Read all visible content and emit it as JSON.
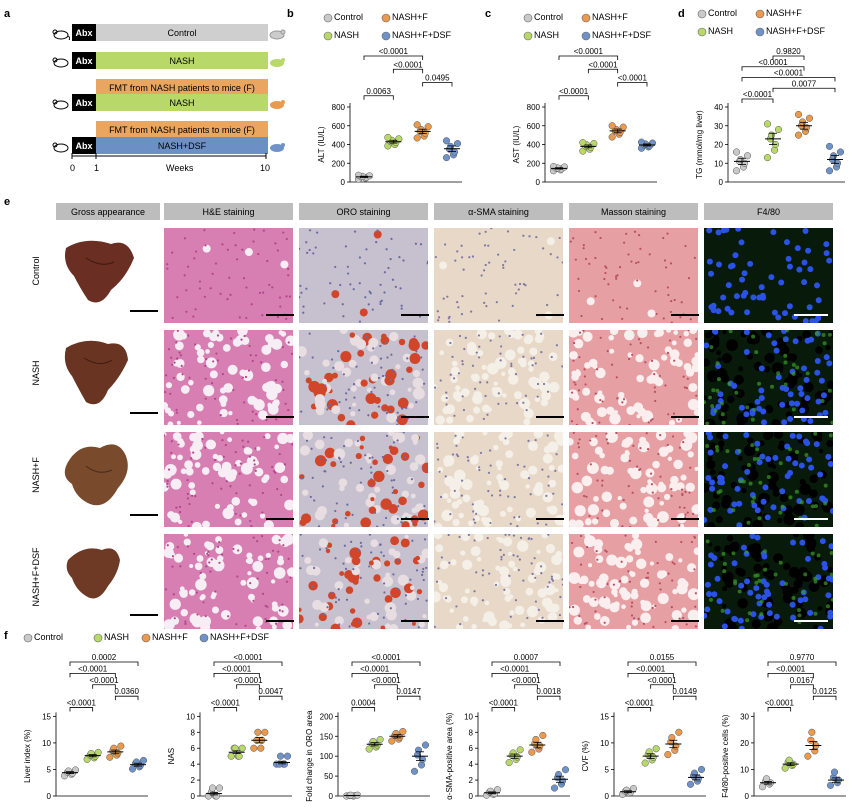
{
  "panels": {
    "a": "a",
    "b": "b",
    "c": "c",
    "d": "d",
    "e": "e",
    "f": "f"
  },
  "colors": {
    "control": "#c9c9c9",
    "nash": "#b9d86a",
    "nashf": "#e99a4f",
    "dsf": "#6f93c8",
    "bar_blue": "#6c8fc6"
  },
  "design": {
    "abx": "Abx",
    "rows": [
      {
        "fmt": "",
        "bar": "Control"
      },
      {
        "fmt": "",
        "bar": "NASH"
      },
      {
        "fmt": "FMT from NASH patients to mice (F)",
        "bar": "NASH"
      },
      {
        "fmt": "FMT from NASH patients to mice (F)",
        "bar": "NASH+DSF"
      }
    ],
    "ticks": [
      "0",
      "1",
      "10"
    ],
    "weeks": "Weeks"
  },
  "legend_top": [
    "Control",
    "NASH+F",
    "NASH",
    "NASH+F+DSF"
  ],
  "legend_f": [
    "Control",
    "NASH",
    "NASH+F",
    "NASH+F+DSF"
  ],
  "e": {
    "columns": [
      "Gross appearance",
      "H&E staining",
      "ORO staining",
      "α-SMA staining",
      "Masson staining",
      "F4/80"
    ],
    "rows": [
      "Control",
      "NASH",
      "NASH+F",
      "NASH+F+DSF"
    ]
  },
  "chart_data": [
    {
      "id": "b",
      "type": "scatter",
      "ylabel": "ALT (IU/L)",
      "ylim": [
        0,
        800
      ],
      "yticks": [
        0,
        200,
        400,
        600,
        800
      ],
      "groups": [
        "Control",
        "NASH",
        "NASH+F",
        "NASH+F+DSF"
      ],
      "series": [
        {
          "group": "Control",
          "mean": 55,
          "values": [
            30,
            42,
            50,
            55,
            60,
            66,
            72
          ]
        },
        {
          "group": "NASH",
          "mean": 430,
          "values": [
            385,
            400,
            420,
            430,
            445,
            460,
            475
          ]
        },
        {
          "group": "NASH+F",
          "mean": 540,
          "values": [
            470,
            490,
            520,
            540,
            560,
            590,
            610
          ]
        },
        {
          "group": "NASH+F+DSF",
          "mean": 355,
          "values": [
            260,
            290,
            320,
            350,
            380,
            410,
            440
          ]
        }
      ],
      "pvalues": [
        "<0.0001",
        "<0.0001",
        "0.0495",
        "0.0063"
      ]
    },
    {
      "id": "c",
      "type": "scatter",
      "ylabel": "AST (IU/L)",
      "ylim": [
        0,
        800
      ],
      "yticks": [
        0,
        200,
        400,
        600,
        800
      ],
      "groups": [
        "Control",
        "NASH",
        "NASH+F",
        "NASH+F+DSF"
      ],
      "series": [
        {
          "group": "Control",
          "mean": 145,
          "values": [
            120,
            130,
            140,
            145,
            150,
            160,
            165
          ]
        },
        {
          "group": "NASH",
          "mean": 380,
          "values": [
            330,
            350,
            370,
            380,
            395,
            410,
            420
          ]
        },
        {
          "group": "NASH+F",
          "mean": 545,
          "values": [
            480,
            510,
            530,
            545,
            560,
            585,
            600
          ]
        },
        {
          "group": "NASH+F+DSF",
          "mean": 395,
          "values": [
            360,
            375,
            385,
            395,
            405,
            415,
            425
          ]
        }
      ],
      "pvalues": [
        "<0.0001",
        "<0.0001",
        "<0.0001",
        "<0.0001"
      ]
    },
    {
      "id": "d",
      "type": "scatter",
      "ylabel": "TG (mmol/mg liver)",
      "ylim": [
        0,
        40
      ],
      "yticks": [
        0,
        10,
        20,
        30,
        40
      ],
      "groups": [
        "Control",
        "NASH",
        "NASH+F",
        "NASH+F+DSF"
      ],
      "series": [
        {
          "group": "Control",
          "mean": 11,
          "values": [
            6,
            8,
            10,
            11,
            12,
            14,
            16
          ]
        },
        {
          "group": "NASH",
          "mean": 23,
          "values": [
            13,
            17,
            20,
            23,
            25,
            28,
            31
          ]
        },
        {
          "group": "NASH+F",
          "mean": 30,
          "values": [
            25,
            27,
            29,
            30,
            32,
            34,
            36
          ]
        },
        {
          "group": "NASH+F+DSF",
          "mean": 12,
          "values": [
            6,
            8,
            10,
            12,
            14,
            16,
            19
          ]
        }
      ],
      "pvalues": [
        "0.9820",
        "<0.0001",
        "<0.0001",
        "0.0077",
        "<0.0001"
      ]
    },
    {
      "id": "f1",
      "type": "scatter",
      "ylabel": "Liver index (%)",
      "ylim": [
        0,
        15
      ],
      "yticks": [
        0,
        5,
        10,
        15
      ],
      "groups": [
        "Control",
        "NASH",
        "NASH+F",
        "NASH+F+DSF"
      ],
      "series": [
        {
          "group": "Control",
          "mean": 4.4,
          "values": [
            3.8,
            4.1,
            4.3,
            4.5,
            4.7,
            4.9
          ]
        },
        {
          "group": "NASH",
          "mean": 7.6,
          "values": [
            6.9,
            7.2,
            7.5,
            7.7,
            8.0,
            8.2
          ]
        },
        {
          "group": "NASH+F",
          "mean": 8.3,
          "values": [
            7.3,
            7.7,
            8.1,
            8.5,
            9.0,
            9.4
          ]
        },
        {
          "group": "NASH+F+DSF",
          "mean": 5.9,
          "values": [
            5.1,
            5.5,
            5.8,
            6.1,
            6.4,
            6.7
          ]
        }
      ],
      "pvalues": [
        "0.0002",
        "<0.0001",
        "<0.0001",
        "0.0360",
        "<0.0001"
      ]
    },
    {
      "id": "f2",
      "type": "scatter",
      "ylabel": "NAS",
      "ylim": [
        0,
        10
      ],
      "yticks": [
        0,
        2,
        4,
        6,
        8,
        10
      ],
      "groups": [
        "Control",
        "NASH",
        "NASH+F",
        "NASH+F+DSF"
      ],
      "series": [
        {
          "group": "Control",
          "mean": 0.3,
          "values": [
            0,
            0,
            0,
            0.5,
            1,
            1
          ]
        },
        {
          "group": "NASH",
          "mean": 5.5,
          "values": [
            5,
            5,
            5,
            6,
            6,
            6
          ]
        },
        {
          "group": "NASH+F",
          "mean": 7,
          "values": [
            6,
            6,
            7,
            7,
            8,
            8
          ]
        },
        {
          "group": "NASH+F+DSF",
          "mean": 4.2,
          "values": [
            4,
            4,
            4,
            4,
            5,
            5
          ]
        }
      ],
      "pvalues": [
        "<0.0001",
        "<0.0001",
        "<0.0001",
        "0.0047",
        "<0.0001"
      ]
    },
    {
      "id": "f3",
      "type": "scatter",
      "ylabel": "Fold change in ORO area",
      "ylim": [
        0,
        200
      ],
      "yticks": [
        0,
        50,
        100,
        150,
        200
      ],
      "groups": [
        "Control",
        "NASH",
        "NASH+F",
        "NASH+F+DSF"
      ],
      "series": [
        {
          "group": "Control",
          "mean": 1,
          "values": [
            0,
            0,
            1,
            1,
            2,
            2
          ]
        },
        {
          "group": "NASH",
          "mean": 130,
          "values": [
            118,
            123,
            128,
            132,
            137,
            142
          ]
        },
        {
          "group": "NASH+F",
          "mean": 150,
          "values": [
            138,
            143,
            148,
            152,
            157,
            162
          ]
        },
        {
          "group": "NASH+F+DSF",
          "mean": 100,
          "values": [
            62,
            78,
            92,
            103,
            115,
            128
          ]
        }
      ],
      "pvalues": [
        "<0.0001",
        "<0.0001",
        "<0.0001",
        "0.0147",
        "0.0004"
      ]
    },
    {
      "id": "f4",
      "type": "scatter",
      "ylabel": "α-SMA-positive area (%)",
      "ylim": [
        0,
        10
      ],
      "yticks": [
        0,
        2,
        4,
        6,
        8,
        10
      ],
      "groups": [
        "Control",
        "NASH",
        "NASH+F",
        "NASH+F+DSF"
      ],
      "series": [
        {
          "group": "Control",
          "mean": 0.4,
          "values": [
            0.1,
            0.2,
            0.3,
            0.5,
            0.6,
            0.8
          ]
        },
        {
          "group": "NASH",
          "mean": 5,
          "values": [
            4.2,
            4.6,
            4.9,
            5.1,
            5.4,
            5.8
          ]
        },
        {
          "group": "NASH+F",
          "mean": 6.4,
          "values": [
            5.5,
            5.9,
            6.3,
            6.6,
            7.1,
            7.6
          ]
        },
        {
          "group": "NASH+F+DSF",
          "mean": 2.1,
          "values": [
            1.0,
            1.5,
            1.9,
            2.3,
            2.7,
            3.3
          ]
        }
      ],
      "pvalues": [
        "0.0007",
        "<0.0001",
        "<0.0001",
        "0.0018",
        "<0.0001"
      ]
    },
    {
      "id": "f5",
      "type": "scatter",
      "ylabel": "CVF (%)",
      "ylim": [
        0,
        15
      ],
      "yticks": [
        0,
        5,
        10,
        15
      ],
      "groups": [
        "Control",
        "NASH",
        "NASH+F",
        "NASH+F+DSF"
      ],
      "series": [
        {
          "group": "Control",
          "mean": 0.8,
          "values": [
            0.3,
            0.5,
            0.7,
            0.9,
            1.1,
            1.4
          ]
        },
        {
          "group": "NASH",
          "mean": 7.5,
          "values": [
            6.2,
            6.8,
            7.3,
            7.8,
            8.3,
            8.9
          ]
        },
        {
          "group": "NASH+F",
          "mean": 9.8,
          "values": [
            7.8,
            8.6,
            9.4,
            10.2,
            11.0,
            12.0
          ]
        },
        {
          "group": "NASH+F+DSF",
          "mean": 3.5,
          "values": [
            2.2,
            2.8,
            3.3,
            3.8,
            4.3,
            5.0
          ]
        }
      ],
      "pvalues": [
        "0.0155",
        "<0.0001",
        "<0.0001",
        "0.0149",
        "<0.0001"
      ]
    },
    {
      "id": "f6",
      "type": "scatter",
      "ylabel": "F4/80-positive cells (%)",
      "ylim": [
        0,
        30
      ],
      "yticks": [
        0,
        10,
        20,
        30
      ],
      "groups": [
        "Control",
        "NASH",
        "NASH+F",
        "NASH+F+DSF"
      ],
      "series": [
        {
          "group": "Control",
          "mean": 5,
          "values": [
            3.5,
            4.5,
            5.0,
            5.5,
            6.5
          ]
        },
        {
          "group": "NASH",
          "mean": 12,
          "values": [
            10.5,
            11.5,
            12.0,
            12.8,
            13.5
          ]
        },
        {
          "group": "NASH+F",
          "mean": 19,
          "values": [
            15,
            17,
            19,
            21,
            24
          ]
        },
        {
          "group": "NASH+F+DSF",
          "mean": 6,
          "values": [
            4,
            5,
            6,
            7,
            9
          ]
        }
      ],
      "pvalues": [
        "0.9770",
        "<0.0001",
        "0.0167",
        "0.0125",
        "<0.0001"
      ]
    }
  ]
}
